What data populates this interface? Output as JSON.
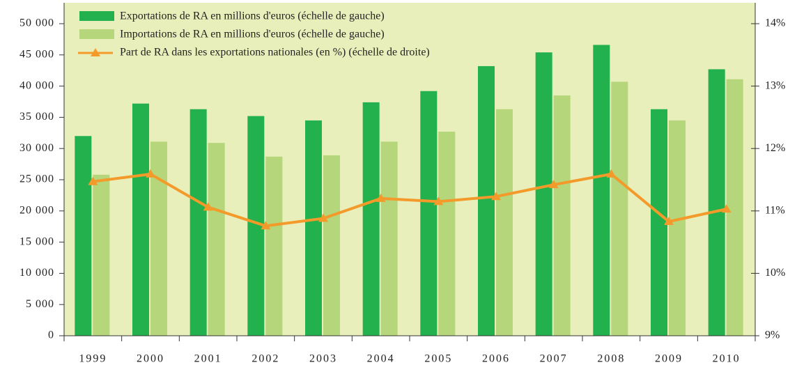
{
  "chart_data": {
    "type": "bar",
    "categories": [
      "1999",
      "2000",
      "2001",
      "2002",
      "2003",
      "2004",
      "2005",
      "2006",
      "2007",
      "2008",
      "2009",
      "2010"
    ],
    "series": [
      {
        "name": "Exportations de RA en millions d'euros (échelle de gauche)",
        "color": "#22b14c",
        "type": "bar",
        "values": [
          32000,
          37200,
          36300,
          35200,
          34500,
          37400,
          39200,
          43200,
          45400,
          46600,
          36300,
          42700
        ]
      },
      {
        "name": "Importations de RA en millions d'euros (échelle de gauche)",
        "color": "#b5d67a",
        "type": "bar",
        "values": [
          25800,
          31100,
          30900,
          28700,
          28900,
          31100,
          32700,
          36300,
          38500,
          40700,
          34500,
          41100
        ]
      },
      {
        "name": "Part de RA dans les exportations nationales (en %) (échelle de droite)",
        "color": "#f39a2b",
        "type": "line",
        "axis": "y2",
        "values": [
          11.47,
          11.59,
          11.06,
          10.76,
          10.88,
          11.2,
          11.15,
          11.23,
          11.42,
          11.59,
          10.83,
          11.03
        ]
      }
    ],
    "ylim": [
      0,
      50000
    ],
    "yticks": [
      0,
      {
        "value": 5000,
        "label": "5 000"
      },
      {
        "value": 10000,
        "label": "10 000"
      },
      {
        "value": 15000,
        "label": "15 000"
      },
      {
        "value": 20000,
        "label": "20 000"
      },
      {
        "value": 25000,
        "label": "25 000"
      },
      {
        "value": 30000,
        "label": "30 000"
      },
      {
        "value": 35000,
        "label": "35 000"
      },
      {
        "value": 40000,
        "label": "40 000"
      },
      {
        "value": 45000,
        "label": "45 000"
      },
      {
        "value": 50000,
        "label": "50 000"
      }
    ],
    "y2lim": [
      9,
      14
    ],
    "y2ticks": [
      {
        "value": 9,
        "label": "9%"
      },
      {
        "value": 10,
        "label": "10%"
      },
      {
        "value": 11,
        "label": "11%"
      },
      {
        "value": 12,
        "label": "12%"
      },
      {
        "value": 13,
        "label": "13%"
      },
      {
        "value": 14,
        "label": "14%"
      }
    ],
    "background": "#e9efba"
  }
}
